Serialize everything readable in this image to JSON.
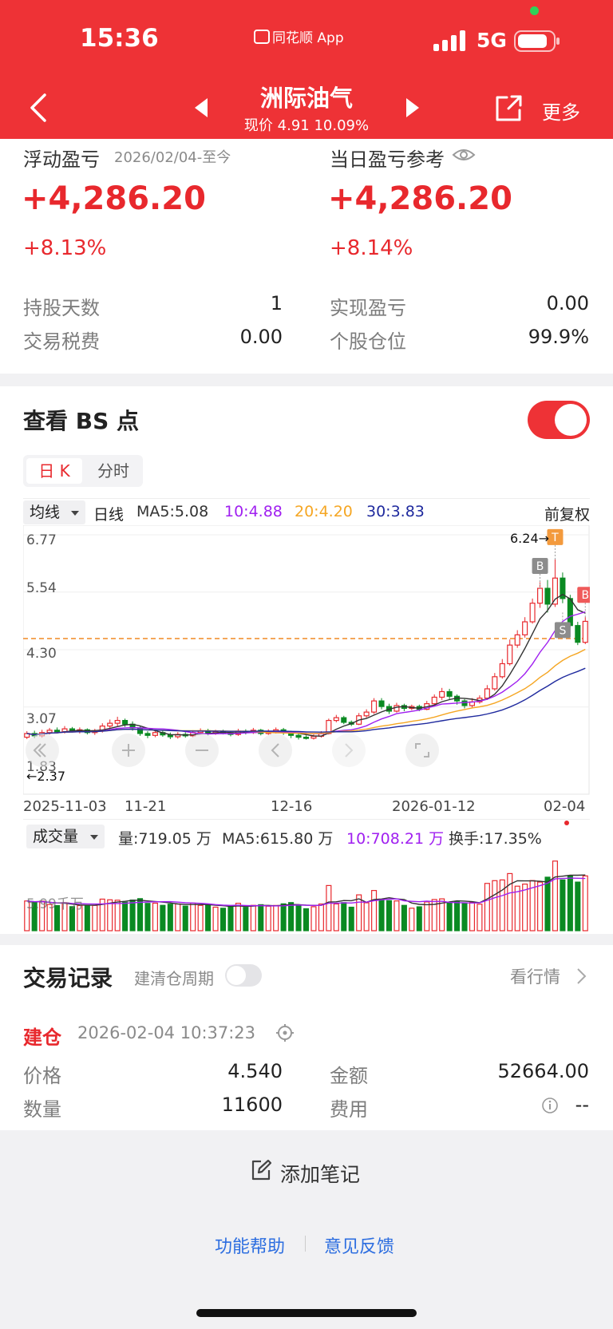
{
  "status_bar": {
    "time": "15:36",
    "app_label": "同花顺 App",
    "network": "5G"
  },
  "nav": {
    "title": "洲际油气",
    "price_text": "现价 4.91 10.09%",
    "more_label": "更多",
    "icons": {
      "back": "back-chevron-icon",
      "prev": "prev-triangle-icon",
      "next": "next-triangle-icon",
      "share": "share-icon"
    }
  },
  "summary": {
    "floating_label": "浮动盈亏",
    "floating_period": "2026/02/04-至今",
    "floating_value": "+4,286.20",
    "floating_pct": "+8.13%",
    "daily_label": "当日盈亏参考",
    "daily_value": "+4,286.20",
    "daily_pct": "+8.14%",
    "stats": [
      {
        "label": "持股天数",
        "value": "1"
      },
      {
        "label": "实现盈亏",
        "value": "0.00"
      },
      {
        "label": "交易税费",
        "value": "0.00"
      },
      {
        "label": "个股仓位",
        "value": "99.9%"
      }
    ]
  },
  "bs": {
    "title": "查看 BS 点",
    "toggle_on": true,
    "tabs": [
      "日 K",
      "分时"
    ],
    "active_tab": 0
  },
  "kline": {
    "indicator_select": "均线",
    "period": "日线",
    "ma5": "MA5:5.08",
    "ma10": "10:4.88",
    "ma20": "20:4.20",
    "ma30": "30:3.83",
    "adjust": "前复权",
    "y_ticks": [
      "6.77",
      "5.54",
      "4.30",
      "3.07",
      "1.83"
    ],
    "high_label": "6.24→",
    "low_label": "←2.37",
    "x_ticks": [
      "2025-11-03",
      "11-21",
      "12-16",
      "2026-01-12",
      "02-04"
    ],
    "markers": [
      "B",
      "T",
      "S",
      "B"
    ],
    "colors": {
      "up": "#e8282d",
      "down": "#0a8a22",
      "ma5": "#333333",
      "ma10": "#a020f0",
      "ma20": "#f5a623",
      "ma30": "#1f2a9e",
      "ref": "#f08a24"
    }
  },
  "chart_data": [
    {
      "type": "candlestick",
      "title": "",
      "y_range": [
        1.83,
        6.77
      ],
      "ref_price": 4.54,
      "period_high": 6.24,
      "period_low": 2.37,
      "x_ticks": [
        "2025-11-03",
        "11-21",
        "12-16",
        "2026-01-12",
        "02-04"
      ],
      "series": [
        {
          "name": "MA5",
          "last": 5.08
        },
        {
          "name": "MA10",
          "last": 4.88
        },
        {
          "name": "MA20",
          "last": 4.2
        },
        {
          "name": "MA30",
          "last": 3.83
        }
      ],
      "candles": [
        [
          2.42,
          2.5,
          2.38,
          2.55
        ],
        [
          2.5,
          2.45,
          2.4,
          2.56
        ],
        [
          2.45,
          2.52,
          2.41,
          2.58
        ],
        [
          2.52,
          2.57,
          2.48,
          2.62
        ],
        [
          2.57,
          2.54,
          2.5,
          2.63
        ],
        [
          2.54,
          2.6,
          2.5,
          2.66
        ],
        [
          2.6,
          2.55,
          2.52,
          2.64
        ],
        [
          2.55,
          2.58,
          2.5,
          2.63
        ],
        [
          2.58,
          2.52,
          2.48,
          2.61
        ],
        [
          2.52,
          2.56,
          2.47,
          2.6
        ],
        [
          2.56,
          2.66,
          2.52,
          2.72
        ],
        [
          2.66,
          2.72,
          2.6,
          2.8
        ],
        [
          2.72,
          2.78,
          2.66,
          2.86
        ],
        [
          2.78,
          2.7,
          2.64,
          2.82
        ],
        [
          2.7,
          2.62,
          2.56,
          2.76
        ],
        [
          2.62,
          2.5,
          2.45,
          2.66
        ],
        [
          2.5,
          2.46,
          2.4,
          2.55
        ],
        [
          2.46,
          2.52,
          2.42,
          2.57
        ],
        [
          2.52,
          2.47,
          2.43,
          2.56
        ],
        [
          2.47,
          2.43,
          2.38,
          2.52
        ],
        [
          2.43,
          2.48,
          2.39,
          2.53
        ],
        [
          2.48,
          2.45,
          2.41,
          2.53
        ],
        [
          2.45,
          2.52,
          2.42,
          2.57
        ],
        [
          2.52,
          2.56,
          2.48,
          2.61
        ],
        [
          2.56,
          2.5,
          2.46,
          2.6
        ],
        [
          2.5,
          2.54,
          2.47,
          2.58
        ],
        [
          2.54,
          2.52,
          2.48,
          2.58
        ],
        [
          2.52,
          2.48,
          2.44,
          2.56
        ],
        [
          2.48,
          2.55,
          2.45,
          2.6
        ],
        [
          2.55,
          2.52,
          2.48,
          2.59
        ],
        [
          2.52,
          2.57,
          2.49,
          2.62
        ],
        [
          2.57,
          2.5,
          2.46,
          2.6
        ],
        [
          2.5,
          2.54,
          2.47,
          2.59
        ],
        [
          2.54,
          2.58,
          2.5,
          2.63
        ],
        [
          2.58,
          2.52,
          2.47,
          2.62
        ],
        [
          2.52,
          2.46,
          2.4,
          2.56
        ],
        [
          2.46,
          2.42,
          2.37,
          2.5
        ],
        [
          2.42,
          2.4,
          2.37,
          2.46
        ],
        [
          2.4,
          2.44,
          2.37,
          2.48
        ],
        [
          2.44,
          2.5,
          2.41,
          2.55
        ],
        [
          2.5,
          2.78,
          2.48,
          2.82
        ],
        [
          2.78,
          2.84,
          2.74,
          2.9
        ],
        [
          2.84,
          2.74,
          2.7,
          2.88
        ],
        [
          2.74,
          2.7,
          2.66,
          2.78
        ],
        [
          2.7,
          2.88,
          2.68,
          2.94
        ],
        [
          2.88,
          2.96,
          2.84,
          3.02
        ],
        [
          2.96,
          3.2,
          2.92,
          3.26
        ],
        [
          3.2,
          3.08,
          3.02,
          3.26
        ],
        [
          3.08,
          2.98,
          2.92,
          3.14
        ],
        [
          2.98,
          3.1,
          2.95,
          3.16
        ],
        [
          3.1,
          3.04,
          2.98,
          3.14
        ],
        [
          3.04,
          3.08,
          3.0,
          3.12
        ],
        [
          3.08,
          3.02,
          2.98,
          3.12
        ],
        [
          3.02,
          3.14,
          3.0,
          3.2
        ],
        [
          3.14,
          3.28,
          3.1,
          3.34
        ],
        [
          3.28,
          3.4,
          3.22,
          3.48
        ],
        [
          3.4,
          3.3,
          3.24,
          3.46
        ],
        [
          3.3,
          3.2,
          3.12,
          3.34
        ],
        [
          3.2,
          3.1,
          3.04,
          3.24
        ],
        [
          3.1,
          3.18,
          3.06,
          3.26
        ],
        [
          3.18,
          3.26,
          3.14,
          3.32
        ],
        [
          3.26,
          3.46,
          3.22,
          3.54
        ],
        [
          3.46,
          3.72,
          3.42,
          3.8
        ],
        [
          3.72,
          4.0,
          3.68,
          4.1
        ],
        [
          4.0,
          4.4,
          3.96,
          4.52
        ],
        [
          4.4,
          4.62,
          4.34,
          4.72
        ],
        [
          4.62,
          4.9,
          4.56,
          5.0
        ],
        [
          4.9,
          5.3,
          4.86,
          5.4
        ],
        [
          5.3,
          5.62,
          5.2,
          5.75
        ],
        [
          5.62,
          5.28,
          5.1,
          5.8
        ],
        [
          5.28,
          5.84,
          5.22,
          6.24
        ],
        [
          5.84,
          5.4,
          5.3,
          5.96
        ],
        [
          5.4,
          4.82,
          4.78,
          5.48
        ],
        [
          4.82,
          4.46,
          4.4,
          4.9
        ],
        [
          4.46,
          4.91,
          4.42,
          5.0
        ]
      ]
    },
    {
      "type": "bar",
      "title": "",
      "series_name": "成交量",
      "volume": "719.05万",
      "ma5": "615.80万",
      "ma10": "708.21万",
      "turnover": "17.35%",
      "ref_label": "5.99千万"
    }
  ],
  "volume": {
    "indicator_select": "成交量",
    "volume_text": "量:719.05 万",
    "ma5_text": "MA5:615.80 万",
    "ma10_text": "10:708.21 万",
    "turnover_text": "换手:17.35%",
    "ref_label": "5.99千万"
  },
  "trades": {
    "title": "交易记录",
    "cycle_label": "建清仓周期",
    "market_link": "看行情",
    "record_type": "建仓",
    "record_time": "2026-02-04 10:37:23",
    "fields": [
      {
        "label": "价格",
        "value": "4.540"
      },
      {
        "label": "金额",
        "value": "52664.00"
      },
      {
        "label": "数量",
        "value": "11600"
      },
      {
        "label": "费用",
        "value": "--"
      }
    ]
  },
  "footer": {
    "add_note": "添加笔记",
    "help": "功能帮助",
    "feedback": "意见反馈"
  }
}
